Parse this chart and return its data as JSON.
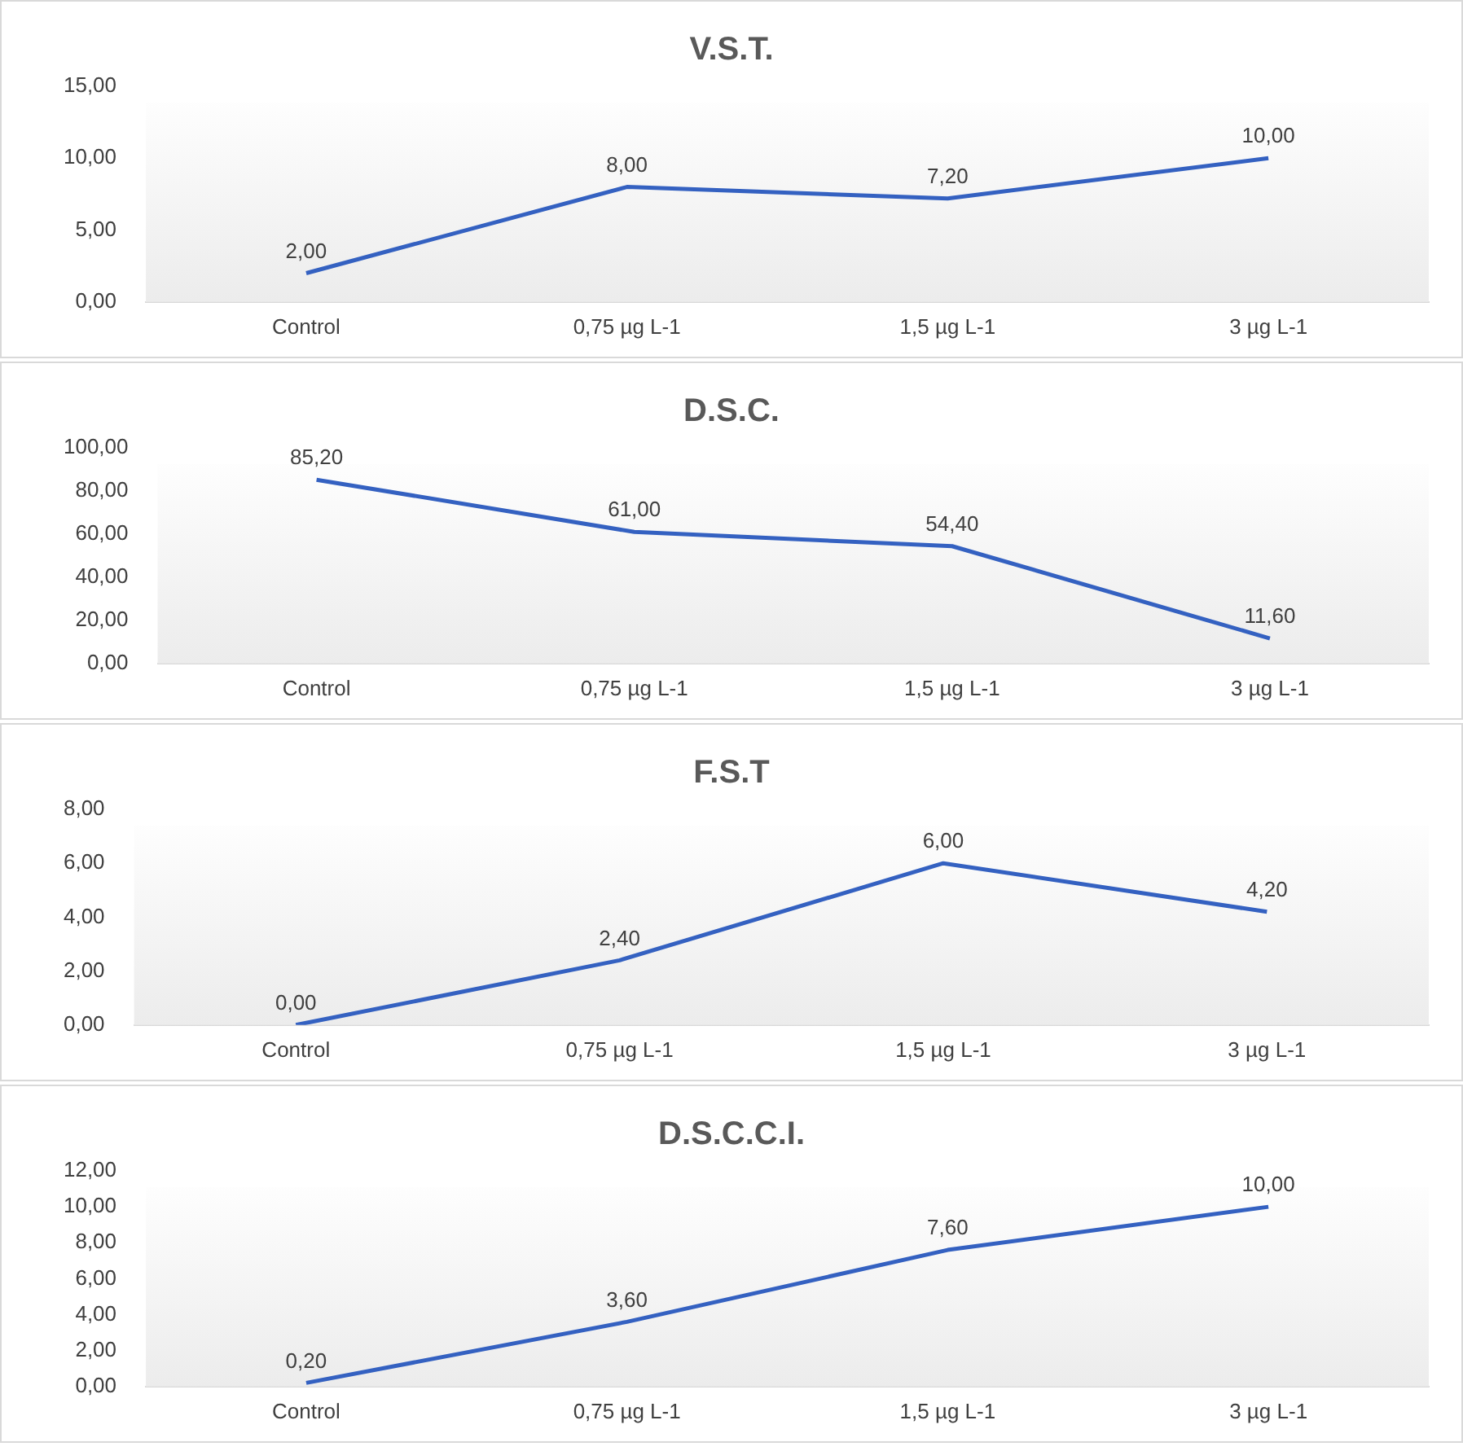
{
  "chart_data": [
    {
      "type": "line",
      "title": "V.S.T.",
      "categories": [
        "Control",
        "0,75 µg L-1",
        "1,5 µg L-1",
        "3 µg L-1"
      ],
      "series": [
        {
          "color": "#3461c1",
          "values": [
            2,
            8,
            7.2,
            10
          ],
          "value_labels": [
            "2,00",
            "8,00",
            "7,20",
            "10,00"
          ]
        }
      ],
      "ylim": [
        0,
        15
      ],
      "yticks": [
        {
          "value": 0,
          "label": "0,00"
        },
        {
          "value": 5,
          "label": "5,00"
        },
        {
          "value": 10,
          "label": "10,00"
        },
        {
          "value": 15,
          "label": "15,00"
        }
      ],
      "grid": false,
      "legend": false,
      "marker": "none",
      "line_style": "solid"
    },
    {
      "type": "line",
      "title": "D.S.C.",
      "categories": [
        "Control",
        "0,75 µg L-1",
        "1,5 µg L-1",
        "3 µg L-1"
      ],
      "series": [
        {
          "color": "#3461c1",
          "values": [
            85.2,
            61,
            54.4,
            11.6
          ],
          "value_labels": [
            "85,20",
            "61,00",
            "54,40",
            "11,60"
          ]
        }
      ],
      "ylim": [
        0,
        100
      ],
      "yticks": [
        {
          "value": 0,
          "label": "0,00"
        },
        {
          "value": 20,
          "label": "20,00"
        },
        {
          "value": 40,
          "label": "40,00"
        },
        {
          "value": 60,
          "label": "60,00"
        },
        {
          "value": 80,
          "label": "80,00"
        },
        {
          "value": 100,
          "label": "100,00"
        }
      ],
      "grid": false,
      "legend": false,
      "marker": "none",
      "line_style": "solid"
    },
    {
      "type": "line",
      "title": "F.S.T",
      "categories": [
        "Control",
        "0,75 µg L-1",
        "1,5 µg L-1",
        "3 µg L-1"
      ],
      "series": [
        {
          "color": "#3461c1",
          "values": [
            0,
            2.4,
            6,
            4.2
          ],
          "value_labels": [
            "0,00",
            "2,40",
            "6,00",
            "4,20"
          ]
        }
      ],
      "ylim": [
        0,
        8
      ],
      "yticks": [
        {
          "value": 0,
          "label": "0,00"
        },
        {
          "value": 2,
          "label": "2,00"
        },
        {
          "value": 4,
          "label": "4,00"
        },
        {
          "value": 6,
          "label": "6,00"
        },
        {
          "value": 8,
          "label": "8,00"
        }
      ],
      "grid": false,
      "legend": false,
      "marker": "none",
      "line_style": "solid"
    },
    {
      "type": "line",
      "title": "D.S.C.C.I.",
      "categories": [
        "Control",
        "0,75 µg L-1",
        "1,5 µg L-1",
        "3 µg L-1"
      ],
      "series": [
        {
          "color": "#3461c1",
          "values": [
            0.2,
            3.6,
            7.6,
            10
          ],
          "value_labels": [
            "0,20",
            "3,60",
            "7,60",
            "10,00"
          ]
        }
      ],
      "ylim": [
        0,
        12
      ],
      "yticks": [
        {
          "value": 0,
          "label": "0,00"
        },
        {
          "value": 2,
          "label": "2,00"
        },
        {
          "value": 4,
          "label": "4,00"
        },
        {
          "value": 6,
          "label": "6,00"
        },
        {
          "value": 8,
          "label": "8,00"
        },
        {
          "value": 10,
          "label": "10,00"
        },
        {
          "value": 12,
          "label": "12,00"
        }
      ],
      "grid": false,
      "legend": false,
      "marker": "none",
      "line_style": "solid"
    }
  ]
}
